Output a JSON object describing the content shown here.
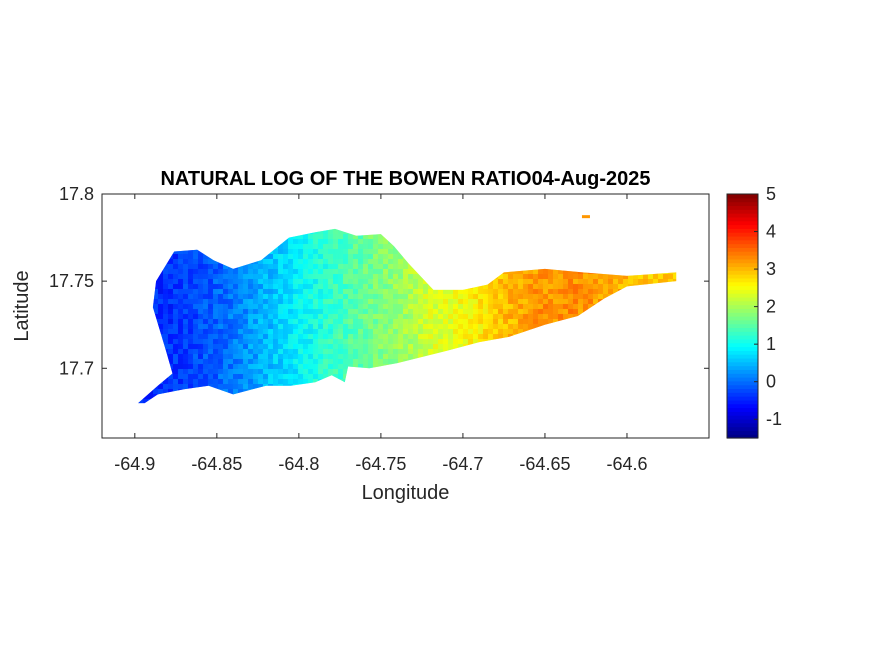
{
  "chart_data": {
    "type": "heatmap",
    "title": "NATURAL LOG OF THE BOWEN RATIO04-Aug-2025",
    "xlabel": "Longitude",
    "ylabel": "Latitude",
    "xlim": [
      -64.92,
      -64.55
    ],
    "ylim": [
      17.66,
      17.8
    ],
    "xticks": [
      -64.9,
      -64.85,
      -64.8,
      -64.75,
      -64.7,
      -64.65,
      -64.6
    ],
    "xtick_labels": [
      "-64.9",
      "-64.85",
      "-64.8",
      "-64.75",
      "-64.7",
      "-64.65",
      "-64.6"
    ],
    "yticks": [
      17.7,
      17.75,
      17.8
    ],
    "ytick_labels": [
      "17.7",
      "17.75",
      "17.8"
    ],
    "colorbar": {
      "colormap": "jet",
      "clim": [
        -1.5,
        5
      ],
      "ticks": [
        -1,
        0,
        1,
        2,
        3,
        4,
        5
      ],
      "tick_labels": [
        "-1",
        "0",
        "1",
        "2",
        "3",
        "4",
        "5"
      ]
    },
    "grid": false,
    "value_profile": {
      "lon": [
        -64.9,
        -64.88,
        -64.86,
        -64.84,
        -64.82,
        -64.8,
        -64.78,
        -64.76,
        -64.74,
        -64.72,
        -64.7,
        -64.68,
        -64.66,
        -64.64,
        -64.62,
        -64.6,
        -64.57
      ],
      "value": [
        -0.5,
        -0.4,
        -0.2,
        0.1,
        0.5,
        0.9,
        1.3,
        1.6,
        1.9,
        2.3,
        2.5,
        2.9,
        3.2,
        3.3,
        3.2,
        3.0,
        2.8
      ]
    },
    "island_outline": [
      [
        -64.898,
        17.68
      ],
      [
        -64.886,
        17.69
      ],
      [
        -64.877,
        17.697
      ],
      [
        -64.881,
        17.71
      ],
      [
        -64.889,
        17.735
      ],
      [
        -64.887,
        17.75
      ],
      [
        -64.876,
        17.767
      ],
      [
        -64.862,
        17.768
      ],
      [
        -64.852,
        17.762
      ],
      [
        -64.84,
        17.757
      ],
      [
        -64.823,
        17.762
      ],
      [
        -64.806,
        17.775
      ],
      [
        -64.79,
        17.778
      ],
      [
        -64.778,
        17.78
      ],
      [
        -64.765,
        17.776
      ],
      [
        -64.75,
        17.777
      ],
      [
        -64.742,
        17.77
      ],
      [
        -64.733,
        17.76
      ],
      [
        -64.718,
        17.745
      ],
      [
        -64.7,
        17.745
      ],
      [
        -64.685,
        17.748
      ],
      [
        -64.675,
        17.755
      ],
      [
        -64.65,
        17.757
      ],
      [
        -64.627,
        17.755
      ],
      [
        -64.6,
        17.753
      ],
      [
        -64.57,
        17.755
      ],
      [
        -64.57,
        17.75
      ],
      [
        -64.6,
        17.747
      ],
      [
        -64.614,
        17.74
      ],
      [
        -64.63,
        17.73
      ],
      [
        -64.65,
        17.725
      ],
      [
        -64.672,
        17.718
      ],
      [
        -64.69,
        17.715
      ],
      [
        -64.71,
        17.71
      ],
      [
        -64.74,
        17.703
      ],
      [
        -64.757,
        17.7
      ],
      [
        -64.77,
        17.701
      ],
      [
        -64.772,
        17.692
      ],
      [
        -64.78,
        17.696
      ],
      [
        -64.79,
        17.692
      ],
      [
        -64.805,
        17.69
      ],
      [
        -64.82,
        17.69
      ],
      [
        -64.84,
        17.685
      ],
      [
        -64.855,
        17.69
      ],
      [
        -64.87,
        17.688
      ],
      [
        -64.886,
        17.685
      ],
      [
        -64.894,
        17.68
      ]
    ],
    "islet_points": [
      [
        -64.625,
        17.787
      ]
    ]
  }
}
